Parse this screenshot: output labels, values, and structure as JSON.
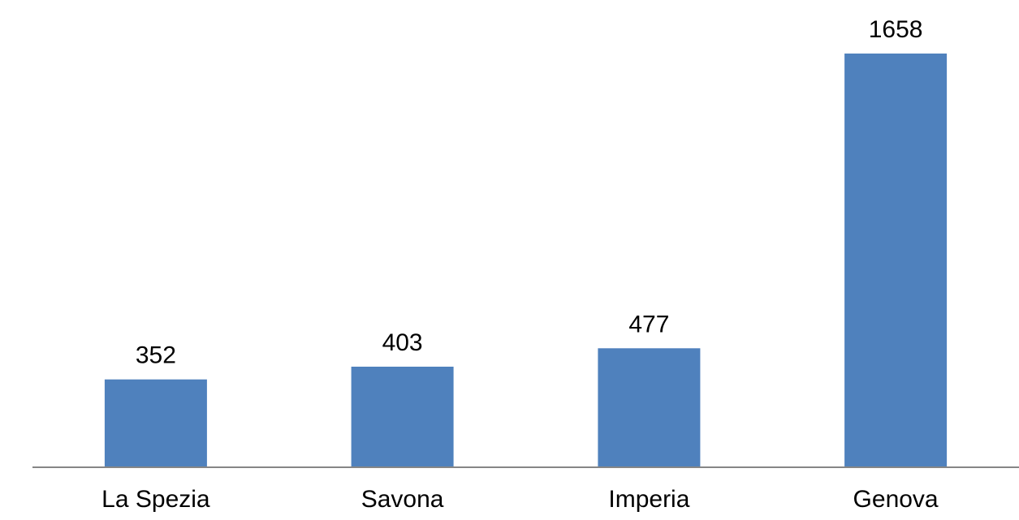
{
  "chart_data": {
    "type": "bar",
    "title": "",
    "xlabel": "",
    "ylabel": "",
    "categories": [
      "La Spezia",
      "Savona",
      "Imperia",
      "Genova"
    ],
    "values": [
      352,
      403,
      477,
      1658
    ],
    "data_labels": [
      "352",
      "403",
      "477",
      "1658"
    ],
    "ylim": [
      0,
      1658
    ],
    "grid": false,
    "legend": "none",
    "colors": {
      "bar": "#4f81bd",
      "axis": "#868686",
      "text": "#000000"
    }
  }
}
